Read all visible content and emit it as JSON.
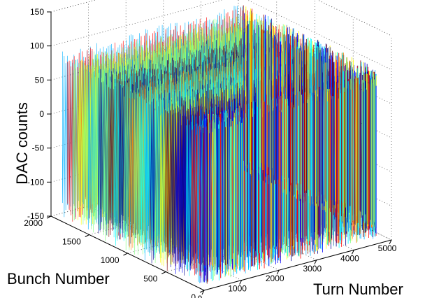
{
  "chart_data": {
    "type": "surface-3d",
    "title": "",
    "xlabel": "Turn Number",
    "ylabel": "Bunch Number",
    "zlabel": "DAC counts",
    "xlim": [
      0,
      5000
    ],
    "ylim": [
      0,
      2000
    ],
    "zlim": [
      -150,
      150
    ],
    "xticks": [
      "0",
      "1000",
      "2000",
      "3000",
      "4000",
      "5000"
    ],
    "yticks": [
      "0",
      "500",
      "1000",
      "1500",
      "2000"
    ],
    "zticks": [
      "150",
      "100",
      "50",
      "0",
      "-50",
      "-100",
      "-150"
    ],
    "grid": true,
    "surface": {
      "x_range": [
        0,
        4800
      ],
      "y_range": [
        100,
        1850
      ],
      "z_range": [
        -150,
        100
      ],
      "ridge_z": 100,
      "colormap": [
        "#00008f",
        "#0000ff",
        "#00b0ff",
        "#00ffff",
        "#80ff80",
        "#ffff00",
        "#ff8000",
        "#ff0000",
        "#800000"
      ]
    }
  }
}
